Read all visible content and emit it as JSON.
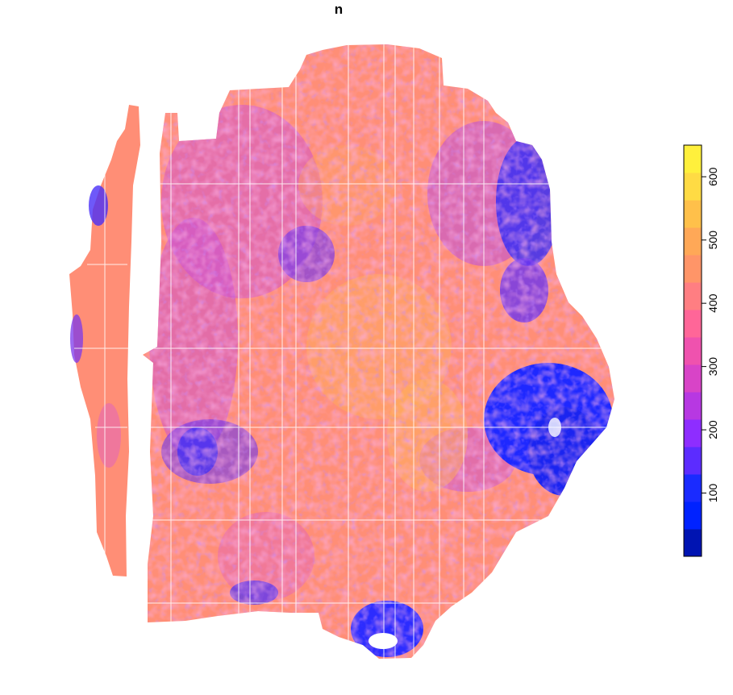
{
  "title": "n",
  "legend": {
    "tick_labels": [
      "100",
      "200",
      "300",
      "400",
      "500",
      "600"
    ],
    "tick_values": [
      100,
      200,
      300,
      400,
      500,
      600
    ],
    "range": [
      0,
      650
    ],
    "colors": [
      "#0014B2",
      "#0022FF",
      "#1A2BFF",
      "#5C2CFF",
      "#8E2DFF",
      "#B738E2",
      "#D844C7",
      "#EF52AE",
      "#FF6698",
      "#FF7E82",
      "#FF9568",
      "#FFA857",
      "#FFC04A",
      "#FFDB44",
      "#FFF03C"
    ],
    "orientation": "vertical",
    "placement": "right"
  },
  "map": {
    "type": "raster",
    "dominant_value_range": [
      400,
      550
    ],
    "low_value_regions": [
      "east",
      "northeast",
      "south-tip"
    ]
  }
}
